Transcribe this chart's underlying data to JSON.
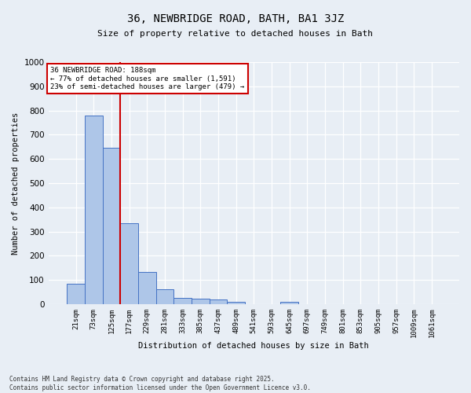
{
  "title": "36, NEWBRIDGE ROAD, BATH, BA1 3JZ",
  "subtitle": "Size of property relative to detached houses in Bath",
  "xlabel": "Distribution of detached houses by size in Bath",
  "ylabel": "Number of detached properties",
  "bar_labels": [
    "21sqm",
    "73sqm",
    "125sqm",
    "177sqm",
    "229sqm",
    "281sqm",
    "333sqm",
    "385sqm",
    "437sqm",
    "489sqm",
    "541sqm",
    "593sqm",
    "645sqm",
    "697sqm",
    "749sqm",
    "801sqm",
    "853sqm",
    "905sqm",
    "957sqm",
    "1009sqm",
    "1061sqm"
  ],
  "bar_values": [
    85,
    780,
    645,
    335,
    132,
    60,
    25,
    22,
    18,
    8,
    0,
    0,
    8,
    0,
    0,
    0,
    0,
    0,
    0,
    0,
    0
  ],
  "bar_color": "#aec6e8",
  "bar_edge_color": "#4472c4",
  "bg_color": "#e8eef5",
  "grid_color": "#ffffff",
  "vline_color": "#cc0000",
  "annotation_text": "36 NEWBRIDGE ROAD: 188sqm\n← 77% of detached houses are smaller (1,591)\n23% of semi-detached houses are larger (479) →",
  "annotation_box_color": "#ffffff",
  "annotation_box_edge": "#cc0000",
  "footer": "Contains HM Land Registry data © Crown copyright and database right 2025.\nContains public sector information licensed under the Open Government Licence v3.0.",
  "ylim": [
    0,
    1000
  ],
  "yticks": [
    0,
    100,
    200,
    300,
    400,
    500,
    600,
    700,
    800,
    900,
    1000
  ]
}
